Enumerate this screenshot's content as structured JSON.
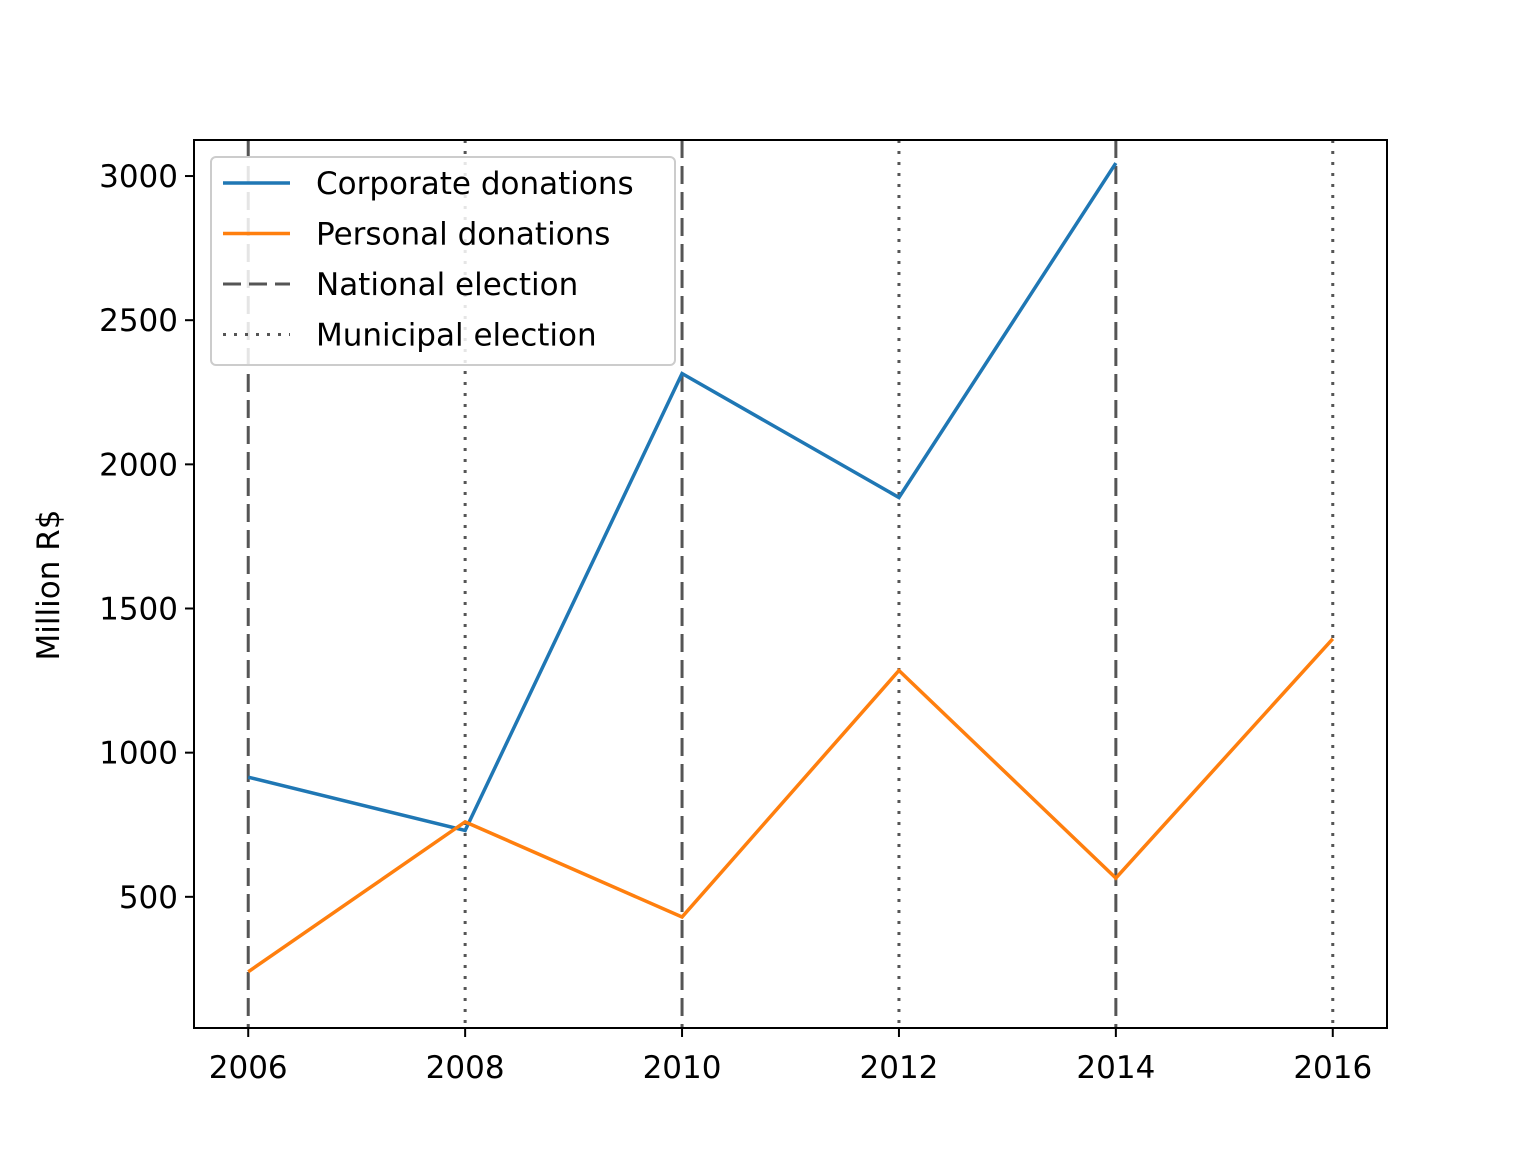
{
  "chart_data": {
    "type": "line",
    "title": "",
    "xlabel": "",
    "ylabel": "Million R$",
    "x": [
      2006,
      2008,
      2010,
      2012,
      2014,
      2016
    ],
    "xticks": [
      "2006",
      "2008",
      "2010",
      "2012",
      "2014",
      "2016"
    ],
    "yticks": [
      "500",
      "1000",
      "1500",
      "2000",
      "2500",
      "3000"
    ],
    "xlim": [
      2005.5,
      2016.5
    ],
    "ylim": [
      45,
      3125
    ],
    "grid": false,
    "legend_position": "top-left",
    "series": [
      {
        "name": "Corporate donations",
        "color": "#1f77b4",
        "x": [
          2006,
          2008,
          2010,
          2012,
          2014
        ],
        "values": [
          915,
          730,
          2315,
          1885,
          3045
        ]
      },
      {
        "name": "Personal donations",
        "color": "#ff7f0e",
        "x": [
          2006,
          2008,
          2010,
          2012,
          2014,
          2016
        ],
        "values": [
          240,
          760,
          430,
          1285,
          565,
          1395
        ]
      }
    ],
    "reference_lines": [
      {
        "name": "National election",
        "style": "dashed",
        "color": "#555555",
        "x": [
          2006,
          2010,
          2014
        ]
      },
      {
        "name": "Municipal election",
        "style": "dotted",
        "color": "#555555",
        "x": [
          2008,
          2012,
          2016
        ]
      }
    ]
  }
}
